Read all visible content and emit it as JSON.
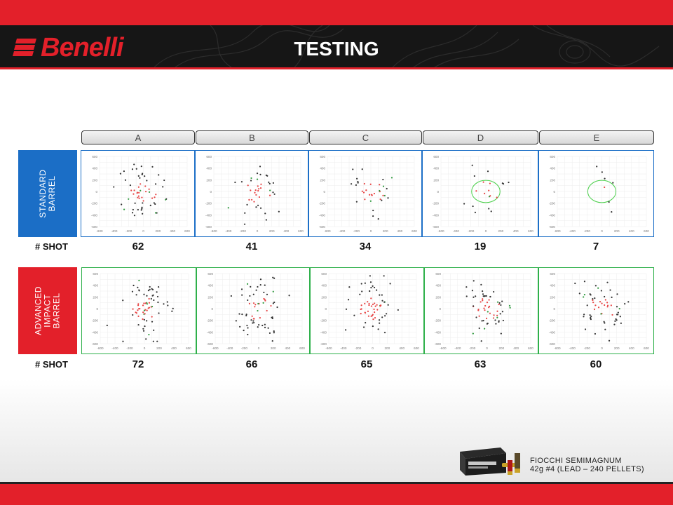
{
  "header": {
    "brand": "Benelli",
    "title": "TESTING",
    "colors": {
      "brand_red": "#e3202a",
      "header_dark": "#161616"
    }
  },
  "columns": [
    "A",
    "B",
    "C",
    "D",
    "E"
  ],
  "rows": [
    {
      "label_lines": [
        "STANDARD",
        "BARREL"
      ],
      "color": "#1b6ec6",
      "border": "#1c6fc7"
    },
    {
      "label_lines": [
        "ADVANCED",
        "IMPACT",
        "BARREL"
      ],
      "color": "#e3202a",
      "border": "#2eb04a"
    }
  ],
  "shot_label": "# SHOT",
  "shots": {
    "standard": [
      "62",
      "41",
      "34",
      "19",
      "7"
    ],
    "advanced": [
      "72",
      "66",
      "65",
      "63",
      "60"
    ]
  },
  "chart_data": {
    "type": "scatter",
    "xlim": [
      -600,
      600
    ],
    "ylim": [
      -600,
      600
    ],
    "xticks": [
      "-600",
      "-400",
      "-200",
      "0",
      "200",
      "400",
      "600"
    ],
    "yticks": [
      "600",
      "400",
      "200",
      "0",
      "-200",
      "-400",
      "-600"
    ],
    "grid": true,
    "panels": [
      {
        "row": "standard",
        "col": "A",
        "count": 62
      },
      {
        "row": "standard",
        "col": "B",
        "count": 41
      },
      {
        "row": "standard",
        "col": "C",
        "count": 34
      },
      {
        "row": "standard",
        "col": "D",
        "count": 19,
        "circle_radius": 190
      },
      {
        "row": "standard",
        "col": "E",
        "count": 7,
        "circle_radius": 190
      },
      {
        "row": "advanced",
        "col": "A",
        "count": 72
      },
      {
        "row": "advanced",
        "col": "B",
        "count": 66
      },
      {
        "row": "advanced",
        "col": "C",
        "count": 65
      },
      {
        "row": "advanced",
        "col": "D",
        "count": 63
      },
      {
        "row": "advanced",
        "col": "E",
        "count": 60
      }
    ],
    "colors": {
      "hit": "#e84545",
      "miss": "#333333",
      "green": "#2f9a3e",
      "circle": "#4cd04c"
    }
  },
  "ammo": {
    "line1": "FIOCCHI SEMIMAGNUM",
    "line2": "42g #4 (LEAD – 240 PELLETS)"
  }
}
